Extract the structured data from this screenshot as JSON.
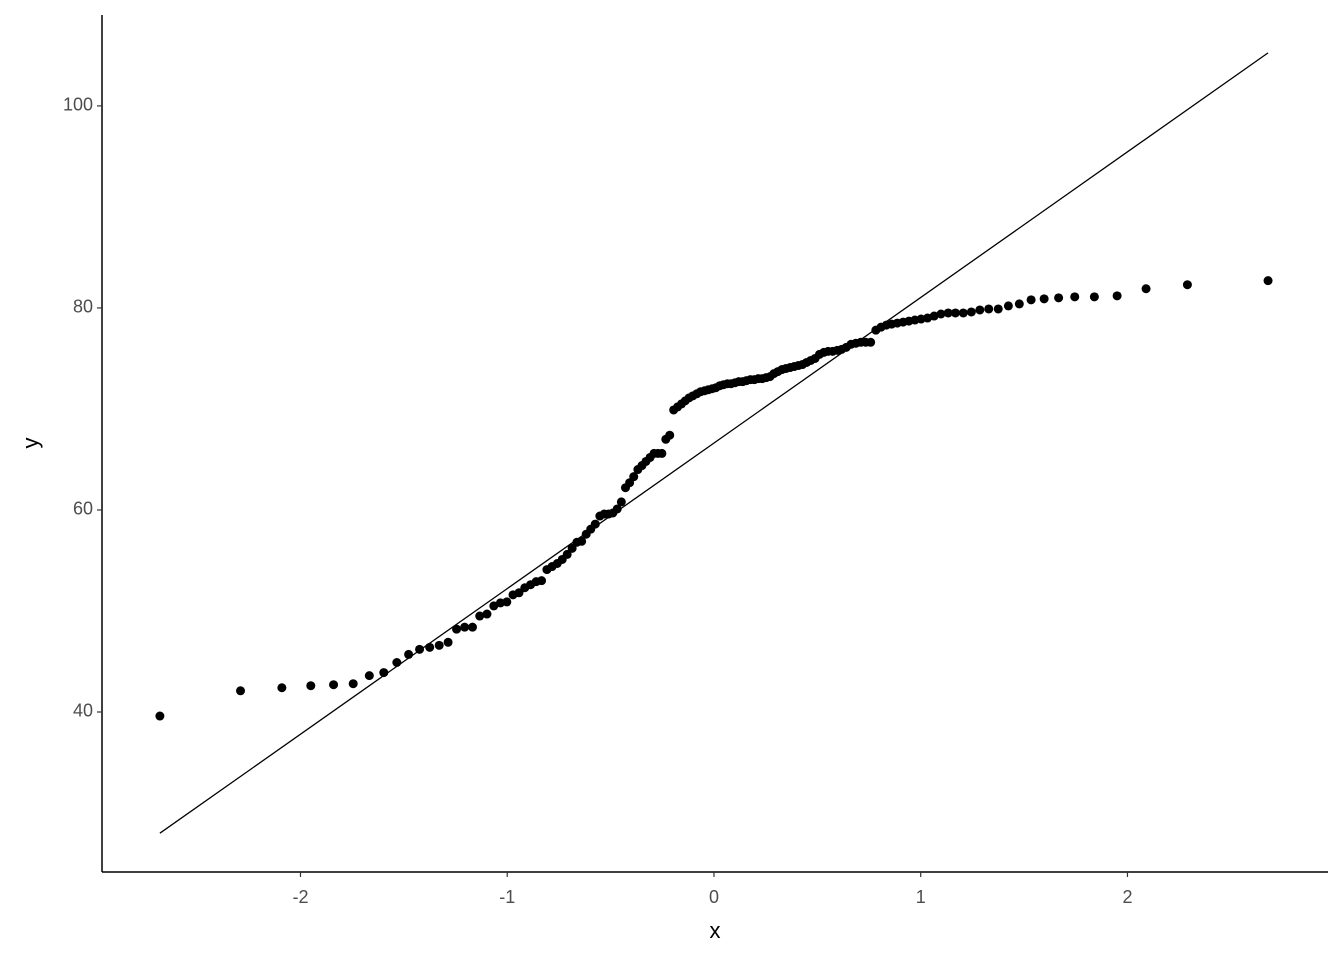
{
  "chart_data": {
    "type": "scatter",
    "x_label": "x",
    "y_label": "y",
    "color": "#000000",
    "xlim": [
      -2.96,
      2.97
    ],
    "ylim": [
      24.16,
      109.0
    ],
    "xticks": [
      -2,
      -1,
      0,
      1,
      2
    ],
    "yticks": [
      40,
      60,
      80,
      100
    ],
    "grid": false,
    "x": [
      -2.68,
      -2.29,
      -2.09,
      -1.95,
      -1.84,
      -1.745,
      -1.667,
      -1.597,
      -1.534,
      -1.477,
      -1.424,
      -1.375,
      -1.329,
      -1.286,
      -1.245,
      -1.206,
      -1.168,
      -1.133,
      -1.098,
      -1.065,
      -1.033,
      -1.002,
      -0.972,
      -0.943,
      -0.915,
      -0.887,
      -0.86,
      -0.834,
      -0.808,
      -0.783,
      -0.758,
      -0.734,
      -0.71,
      -0.686,
      -0.663,
      -0.64,
      -0.618,
      -0.596,
      -0.574,
      -0.552,
      -0.531,
      -0.51,
      -0.489,
      -0.468,
      -0.448,
      -0.428,
      -0.408,
      -0.388,
      -0.368,
      -0.348,
      -0.329,
      -0.309,
      -0.29,
      -0.271,
      -0.252,
      -0.233,
      -0.214,
      -0.195,
      -0.176,
      -0.157,
      -0.139,
      -0.12,
      -0.102,
      -0.083,
      -0.065,
      -0.046,
      -0.028,
      -0.009,
      0.009,
      0.028,
      0.046,
      0.065,
      0.083,
      0.102,
      0.12,
      0.139,
      0.157,
      0.176,
      0.195,
      0.214,
      0.233,
      0.252,
      0.271,
      0.29,
      0.309,
      0.329,
      0.348,
      0.368,
      0.388,
      0.408,
      0.428,
      0.448,
      0.468,
      0.489,
      0.51,
      0.531,
      0.552,
      0.574,
      0.596,
      0.618,
      0.64,
      0.663,
      0.686,
      0.71,
      0.734,
      0.758,
      0.783,
      0.808,
      0.834,
      0.86,
      0.887,
      0.915,
      0.943,
      0.972,
      1.002,
      1.033,
      1.065,
      1.098,
      1.133,
      1.168,
      1.206,
      1.245,
      1.286,
      1.329,
      1.375,
      1.424,
      1.477,
      1.534,
      1.597,
      1.667,
      1.745,
      1.84,
      1.95,
      2.09,
      2.29,
      2.68
    ],
    "values": [
      39.6,
      42.1,
      42.4,
      42.6,
      42.7,
      42.8,
      43.6,
      43.9,
      44.9,
      45.7,
      46.2,
      46.4,
      46.6,
      46.9,
      48.2,
      48.4,
      48.4,
      49.5,
      49.7,
      50.5,
      50.8,
      50.9,
      51.6,
      51.8,
      52.3,
      52.6,
      52.9,
      53.0,
      54.1,
      54.4,
      54.7,
      55.1,
      55.6,
      56.2,
      56.8,
      56.9,
      57.6,
      58.1,
      58.6,
      59.4,
      59.6,
      59.6,
      59.7,
      60.1,
      60.8,
      62.2,
      62.7,
      63.3,
      64.0,
      64.4,
      64.8,
      65.2,
      65.6,
      65.6,
      65.6,
      67.0,
      67.4,
      69.9,
      70.2,
      70.5,
      70.8,
      71.1,
      71.3,
      71.5,
      71.7,
      71.8,
      71.9,
      72.0,
      72.1,
      72.3,
      72.4,
      72.5,
      72.5,
      72.6,
      72.7,
      72.7,
      72.8,
      72.9,
      72.9,
      73.0,
      73.0,
      73.1,
      73.2,
      73.5,
      73.7,
      73.9,
      74.0,
      74.1,
      74.2,
      74.3,
      74.4,
      74.6,
      74.8,
      75.0,
      75.4,
      75.6,
      75.7,
      75.7,
      75.8,
      75.9,
      76.1,
      76.4,
      76.5,
      76.6,
      76.6,
      76.6,
      77.8,
      78.1,
      78.3,
      78.4,
      78.5,
      78.6,
      78.7,
      78.8,
      78.9,
      79.0,
      79.2,
      79.4,
      79.5,
      79.5,
      79.5,
      79.6,
      79.8,
      79.9,
      79.9,
      80.2,
      80.4,
      80.8,
      80.9,
      81.0,
      81.1,
      81.1,
      81.2,
      81.9,
      82.3,
      82.7
    ],
    "ref_line": {
      "x": [
        -2.68,
        2.68
      ],
      "values": [
        28.0,
        105.25
      ]
    }
  }
}
